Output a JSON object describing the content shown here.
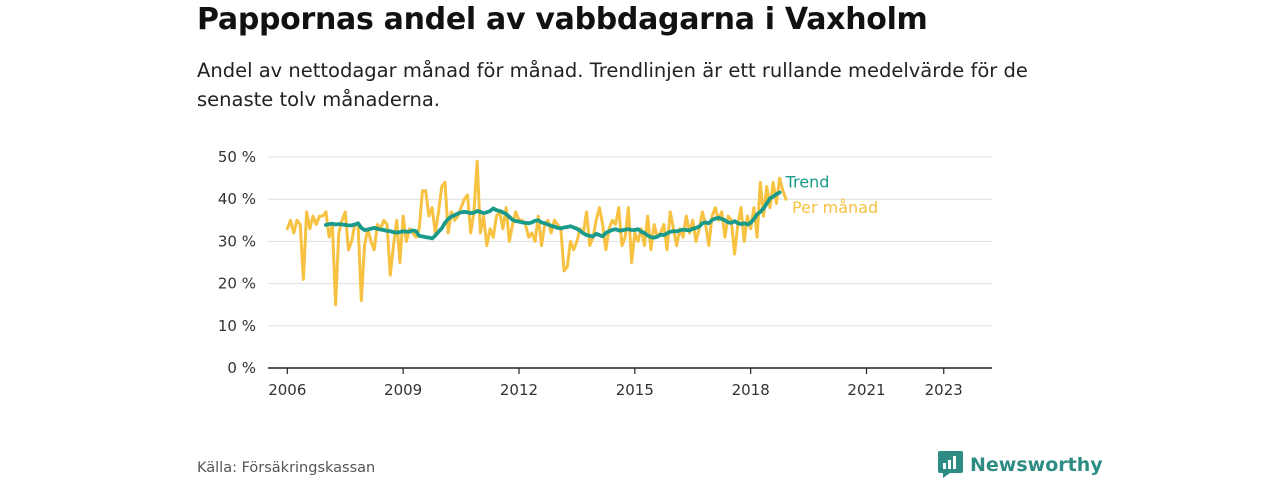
{
  "page": {
    "title": "Pappornas andel av vabbdagarna i Vaxholm",
    "subtitle": "Andel av nettodagar månad för månad. Trendlinjen är ett rullande medelvärde för de senaste tolv månaderna.",
    "source": "Källa: Försäkringskassan",
    "brand": "Newsworthy",
    "brand_icon": "newsworthy-logo-icon"
  },
  "chart_data": {
    "type": "line",
    "title": "Pappornas andel av vabbdagarna i Vaxholm",
    "subtitle": "Andel av nettodagar månad för månad. Trendlinjen är ett rullande medelvärde för de senaste tolv månaderna.",
    "xlabel": "",
    "ylabel": "",
    "ylim": [
      0,
      50
    ],
    "yticks": [
      0,
      10,
      20,
      30,
      40,
      50
    ],
    "ytick_labels": [
      "0 %",
      "10 %",
      "20 %",
      "30 %",
      "40 %",
      "50 %"
    ],
    "xlim": [
      2005.5,
      2024.25
    ],
    "xticks": [
      2006,
      2009,
      2012,
      2015,
      2018,
      2021,
      2023
    ],
    "xtick_labels": [
      "2006",
      "2009",
      "2012",
      "2015",
      "2018",
      "2021",
      "2023"
    ],
    "grid": "horizontal",
    "legend": "inline labels at line ends",
    "colors": {
      "trend": "#1a9a8a",
      "monthly": "#f7c142",
      "grid": "#dddddd",
      "axis": "#222222"
    },
    "series": [
      {
        "name": "Per månad",
        "color": "#f7c142",
        "x_start": 2006.0,
        "x_step": "1 month",
        "values": [
          33,
          35,
          32,
          35,
          34,
          21,
          37,
          33,
          36,
          34,
          36,
          36,
          37,
          31,
          34,
          15,
          32,
          35,
          37,
          28,
          30,
          34,
          34,
          16,
          29,
          33,
          30,
          28,
          34,
          33,
          35,
          34,
          22,
          29,
          35,
          25,
          36,
          30,
          33,
          32,
          31,
          33,
          42,
          42,
          36,
          38,
          32,
          37,
          43,
          44,
          32,
          37,
          35,
          36,
          38,
          40,
          41,
          32,
          37,
          49,
          32,
          36,
          29,
          33,
          31,
          36,
          37,
          33,
          38,
          30,
          34,
          37,
          35,
          35,
          34,
          31,
          32,
          30,
          36,
          29,
          34,
          35,
          32,
          35,
          34,
          33,
          23,
          24,
          30,
          28,
          30,
          33,
          32,
          37,
          29,
          31,
          35,
          38,
          34,
          28,
          33,
          35,
          34,
          38,
          29,
          31,
          38,
          25,
          32,
          30,
          33,
          29,
          36,
          28,
          34,
          31,
          32,
          34,
          28,
          37,
          33,
          29,
          33,
          31,
          36,
          32,
          35,
          30,
          33,
          37,
          34,
          29,
          36,
          38,
          35,
          37,
          31,
          36,
          35,
          27,
          34,
          38,
          30,
          36,
          33,
          38,
          31,
          44,
          36,
          43,
          38,
          44,
          39,
          45,
          42,
          40
        ]
      },
      {
        "name": "Trend",
        "color": "#1a9a8a",
        "x_start": 2007.0,
        "x_step": "1 month",
        "values": [
          33.9,
          34.1,
          34.2,
          34.0,
          34.1,
          34.0,
          33.9,
          33.8,
          33.8,
          34.0,
          34.3,
          33.2,
          32.7,
          32.8,
          33.0,
          33.2,
          33.0,
          32.8,
          32.7,
          32.5,
          32.4,
          32.2,
          32.1,
          32.2,
          32.4,
          32.3,
          32.3,
          32.6,
          32.4,
          31.3,
          31.2,
          31.0,
          30.9,
          30.7,
          31.4,
          32.3,
          33.1,
          34.4,
          35.3,
          35.9,
          36.2,
          36.6,
          36.9,
          37.0,
          36.9,
          36.7,
          36.8,
          37.2,
          37.0,
          36.7,
          36.9,
          37.2,
          37.8,
          37.4,
          37.2,
          36.9,
          36.5,
          35.8,
          35.1,
          34.8,
          34.7,
          34.5,
          34.4,
          34.3,
          34.5,
          34.9,
          35.0,
          34.5,
          34.3,
          34.0,
          33.7,
          33.5,
          33.2,
          33.1,
          33.3,
          33.4,
          33.6,
          33.3,
          33.0,
          32.5,
          31.9,
          31.5,
          31.3,
          31.2,
          31.8,
          31.5,
          31.2,
          32.0,
          32.4,
          32.7,
          32.9,
          32.6,
          32.6,
          32.8,
          32.9,
          32.7,
          32.7,
          32.9,
          32.3,
          32.0,
          31.4,
          31.0,
          30.9,
          31.1,
          31.6,
          31.5,
          31.9,
          32.3,
          32.4,
          32.4,
          32.6,
          32.8,
          32.7,
          32.6,
          33.0,
          33.2,
          33.5,
          34.3,
          34.5,
          34.3,
          35.1,
          35.4,
          35.6,
          35.3,
          35.0,
          34.5,
          34.4,
          34.8,
          34.3,
          34.1,
          34.3,
          34.0,
          34.4,
          35.3,
          36.4,
          37.0,
          37.8,
          39.0,
          40.2,
          40.6,
          41.2,
          41.6
        ]
      }
    ]
  }
}
